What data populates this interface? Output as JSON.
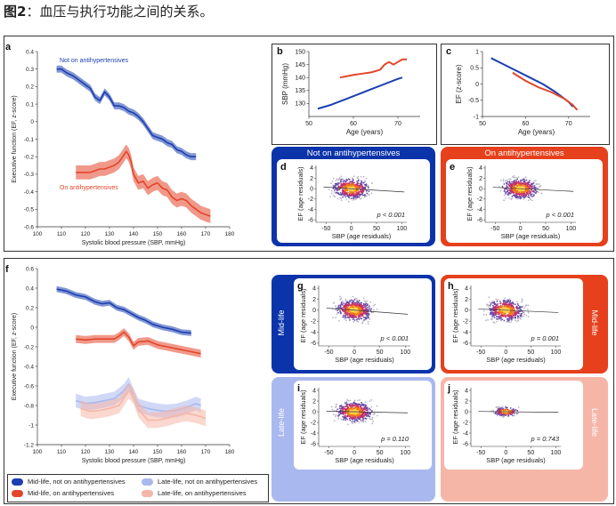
{
  "heading": {
    "fig": "图2",
    "text": "：血压与执行功能之间的关系。"
  },
  "colors": {
    "blue": "#1b3fb0",
    "red": "#e3452a",
    "light_blue": "#a9b8ee",
    "light_red": "#f5b6a8",
    "dark_panel": "#0b33aa",
    "red_panel": "#e6401c"
  },
  "chart_data": [
    {
      "id": "a",
      "type": "line",
      "letter": "a",
      "xlabel": "Systolic blood pressure (SBP, mmHg)",
      "ylabel": "Executive function (EF, z-score)",
      "xlim": [
        100,
        180
      ],
      "ylim": [
        -0.6,
        0.4
      ],
      "xticks": [
        "100",
        "110",
        "120",
        "130",
        "140",
        "150",
        "160",
        "170",
        "180"
      ],
      "yticks": [
        "-0.6",
        "-0.5",
        "-0.4",
        "-0.3",
        "-0.2",
        "-0.1",
        "0",
        "0.1",
        "0.2",
        "0.3",
        "0.4"
      ],
      "series": [
        {
          "name": "Not on antihypertensives",
          "color": "#1b3fb0",
          "ci": 0.02,
          "x": [
            108,
            110,
            112,
            115,
            117,
            120,
            122,
            124,
            126,
            128,
            130,
            132,
            134,
            136,
            138,
            140,
            142,
            144,
            146,
            148,
            150,
            152,
            154,
            156,
            158,
            160,
            162,
            164,
            166
          ],
          "y": [
            0.3,
            0.3,
            0.28,
            0.26,
            0.24,
            0.21,
            0.19,
            0.14,
            0.12,
            0.17,
            0.14,
            0.09,
            0.09,
            0.08,
            0.06,
            0.05,
            0.03,
            0.0,
            -0.04,
            -0.08,
            -0.09,
            -0.1,
            -0.12,
            -0.13,
            -0.16,
            -0.17,
            -0.19,
            -0.2,
            -0.2
          ]
        },
        {
          "name": "On antihypertensives",
          "color": "#e3452a",
          "ci": 0.04,
          "x": [
            116,
            118,
            120,
            122,
            124,
            126,
            128,
            130,
            132,
            134,
            136,
            137,
            138,
            139,
            140,
            142,
            144,
            146,
            148,
            150,
            152,
            154,
            156,
            158,
            160,
            162,
            164,
            166,
            168,
            170,
            172
          ],
          "y": [
            -0.29,
            -0.29,
            -0.29,
            -0.29,
            -0.28,
            -0.27,
            -0.27,
            -0.26,
            -0.25,
            -0.23,
            -0.19,
            -0.17,
            -0.19,
            -0.23,
            -0.3,
            -0.35,
            -0.34,
            -0.38,
            -0.36,
            -0.35,
            -0.38,
            -0.39,
            -0.43,
            -0.45,
            -0.44,
            -0.45,
            -0.48,
            -0.5,
            -0.52,
            -0.53,
            -0.54
          ]
        }
      ]
    },
    {
      "id": "b",
      "type": "line",
      "letter": "b",
      "xlabel": "Age (years)",
      "ylabel": "SBP (mmHg)",
      "xlim": [
        50,
        75
      ],
      "ylim": [
        125,
        150
      ],
      "xticks": [
        "50",
        "60",
        "70"
      ],
      "yticks": [
        "130",
        "135",
        "140",
        "145",
        "150"
      ],
      "series": [
        {
          "name": "Not on antihypertensives",
          "color": "#1b3fb0",
          "x": [
            52,
            55,
            58,
            61,
            64,
            67,
            70,
            71
          ],
          "y": [
            128,
            129.5,
            131.5,
            133.5,
            135.5,
            137.5,
            139.5,
            140
          ]
        },
        {
          "name": "On antihypertensives",
          "color": "#e3452a",
          "x": [
            57,
            60,
            62,
            64,
            66,
            67,
            68,
            69,
            70,
            71,
            72
          ],
          "y": [
            140,
            141,
            141.5,
            142,
            143,
            145,
            146,
            145,
            146,
            147,
            147
          ]
        }
      ]
    },
    {
      "id": "c",
      "type": "line",
      "letter": "c",
      "xlabel": "Age (years)",
      "ylabel": "EF (z-score)",
      "xlim": [
        50,
        75
      ],
      "ylim": [
        -1,
        1
      ],
      "xticks": [
        "50",
        "60",
        "70"
      ],
      "yticks": [
        "-1",
        "-0.5",
        "0",
        "0.5",
        "1"
      ],
      "series": [
        {
          "name": "Not on antihypertensives",
          "color": "#1b3fb0",
          "x": [
            52,
            55,
            58,
            61,
            64,
            67,
            70,
            71
          ],
          "y": [
            0.8,
            0.6,
            0.4,
            0.2,
            0.0,
            -0.25,
            -0.55,
            -0.7
          ]
        },
        {
          "name": "On antihypertensives",
          "color": "#e3452a",
          "x": [
            57,
            60,
            63,
            66,
            69,
            71,
            72
          ],
          "y": [
            0.35,
            0.1,
            -0.1,
            -0.25,
            -0.45,
            -0.65,
            -0.8
          ]
        }
      ]
    },
    {
      "id": "f",
      "type": "line",
      "letter": "f",
      "xlabel": "Systolic blood pressure (SBP, mmHg)",
      "ylabel": "Executive function (EF, z-score)",
      "xlim": [
        100,
        180
      ],
      "ylim": [
        -1.2,
        0.6
      ],
      "xticks": [
        "100",
        "110",
        "120",
        "130",
        "140",
        "150",
        "160",
        "170",
        "180"
      ],
      "yticks": [
        "-1.2",
        "-1",
        "-0.8",
        "-0.6",
        "-0.4",
        "-0.2",
        "0",
        "0.2",
        "0.4",
        "0.6"
      ],
      "series": [
        {
          "name": "Mid-life, not on antihypertensives",
          "color": "#1b3fb0",
          "ci": 0.03,
          "x": [
            108,
            112,
            116,
            120,
            124,
            127,
            130,
            133,
            136,
            139,
            142,
            145,
            148,
            152,
            156,
            160,
            164
          ],
          "y": [
            0.39,
            0.37,
            0.33,
            0.31,
            0.26,
            0.24,
            0.25,
            0.2,
            0.18,
            0.14,
            0.1,
            0.07,
            0.03,
            0.0,
            -0.02,
            -0.05,
            -0.06
          ]
        },
        {
          "name": "Mid-life, on antihypertensives",
          "color": "#e3452a",
          "ci": 0.04,
          "x": [
            116,
            120,
            124,
            128,
            132,
            134,
            136,
            138,
            140,
            142,
            146,
            150,
            154,
            158,
            162,
            166,
            168
          ],
          "y": [
            -0.12,
            -0.13,
            -0.12,
            -0.12,
            -0.12,
            -0.09,
            -0.05,
            -0.1,
            -0.19,
            -0.15,
            -0.14,
            -0.18,
            -0.2,
            -0.22,
            -0.24,
            -0.26,
            -0.27
          ]
        },
        {
          "name": "Late-life, not on antihypertensives",
          "color": "#a9b8ee",
          "ci": 0.07,
          "x": [
            116,
            120,
            124,
            128,
            132,
            136,
            138,
            140,
            142,
            146,
            150,
            154,
            158,
            162,
            166,
            168
          ],
          "y": [
            -0.75,
            -0.78,
            -0.77,
            -0.75,
            -0.73,
            -0.65,
            -0.58,
            -0.7,
            -0.8,
            -0.83,
            -0.85,
            -0.86,
            -0.85,
            -0.82,
            -0.78,
            -0.8
          ]
        },
        {
          "name": "Late-life, on antihypertensives",
          "color": "#f5b6a8",
          "ci": 0.08,
          "x": [
            118,
            122,
            126,
            130,
            134,
            138,
            140,
            142,
            146,
            150,
            154,
            158,
            162,
            166,
            170
          ],
          "y": [
            -0.83,
            -0.86,
            -0.85,
            -0.83,
            -0.8,
            -0.65,
            -0.7,
            -0.84,
            -0.95,
            -0.95,
            -0.93,
            -0.9,
            -0.88,
            -0.9,
            -0.93
          ]
        }
      ]
    },
    {
      "id": "d",
      "type": "scatter",
      "letter": "d",
      "xlabel": "SBP (age residuals)",
      "ylabel": "EF (age residuals)",
      "xticks": [
        "-50",
        "0",
        "50",
        "100"
      ],
      "yticks": [
        "4",
        "2",
        "0",
        "-2",
        "-4",
        "-6"
      ],
      "p_label": "p < 0.001",
      "slope": -0.006
    },
    {
      "id": "e",
      "type": "scatter",
      "letter": "e",
      "xlabel": "SBP (age residuals)",
      "ylabel": "EF (age residuals)",
      "xticks": [
        "-50",
        "0",
        "50",
        "100"
      ],
      "yticks": [
        "4",
        "2",
        "0",
        "-2",
        "-4",
        "-6"
      ],
      "p_label": "p < 0.001",
      "slope": -0.005
    },
    {
      "id": "g",
      "type": "scatter",
      "letter": "g",
      "xlabel": "SBP (age residuals)",
      "ylabel": "EF (age residuals)",
      "xticks": [
        "-50",
        "0",
        "50",
        "100"
      ],
      "yticks": [
        "4",
        "2",
        "0",
        "-2",
        "-4",
        "-6"
      ],
      "p_label": "p < 0.001",
      "slope": -0.007
    },
    {
      "id": "h",
      "type": "scatter",
      "letter": "h",
      "xlabel": "SBP (age residuals)",
      "ylabel": "EF (age residuals)",
      "xticks": [
        "-50",
        "0",
        "50",
        "100"
      ],
      "yticks": [
        "4",
        "2",
        "0",
        "-2",
        "-4",
        "-6"
      ],
      "p_label": "p = 0.001",
      "slope": -0.004
    },
    {
      "id": "i",
      "type": "scatter",
      "letter": "i",
      "xlabel": "SBP (age residuals)",
      "ylabel": "EF (age residuals)",
      "xticks": [
        "-50",
        "0",
        "50",
        "100"
      ],
      "yticks": [
        "4",
        "2",
        "0",
        "-2",
        "-4",
        "-6"
      ],
      "p_label": "p = 0.110",
      "slope": -0.002
    },
    {
      "id": "j",
      "type": "scatter",
      "letter": "j",
      "xlabel": "SBP (age residuals)",
      "ylabel": "EF (age residuals)",
      "xticks": [
        "-50",
        "0",
        "50",
        "100"
      ],
      "yticks": [
        "4",
        "2",
        "0",
        "-2",
        "-4",
        "-6"
      ],
      "p_label": "p = 0.743",
      "slope": -0.001
    }
  ],
  "panel_labels": {
    "a_blue": "Not on antihypertensives",
    "a_red": "On antihypertensives",
    "de_left": "Not on antihypertensives",
    "de_right": "On antihypertensives",
    "mid_left": "Mid-life",
    "mid_right": "Mid-life",
    "late_left": "Late-life",
    "late_right": "Late-life"
  },
  "legend": [
    {
      "label": "Mid-life, not on antihypertensives",
      "color": "#1b3fb0"
    },
    {
      "label": "Late-life, not on antihypertensives",
      "color": "#a9b8ee"
    },
    {
      "label": "Mid-life, on antihypertensives",
      "color": "#e3452a"
    },
    {
      "label": "Late-life, on antihypertensives",
      "color": "#f5b6a8"
    }
  ]
}
